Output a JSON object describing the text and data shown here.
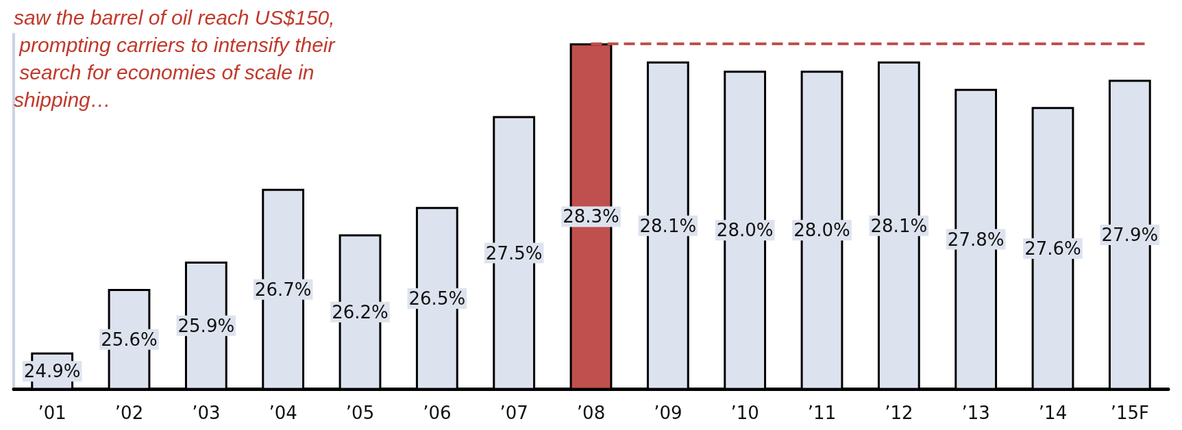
{
  "chart_data": {
    "type": "bar",
    "categories": [
      "’01",
      "’02",
      "’03",
      "’04",
      "’05",
      "’06",
      "’07",
      "’08",
      "’09",
      "’10",
      "’11",
      "’12",
      "’13",
      "’14",
      "’15F"
    ],
    "values": [
      24.9,
      25.6,
      25.9,
      26.7,
      26.2,
      26.5,
      27.5,
      28.3,
      28.1,
      28.0,
      28.0,
      28.1,
      27.8,
      27.6,
      27.9
    ],
    "colors": [
      "#dde3ee",
      "#dde3ee",
      "#dde3ee",
      "#dde3ee",
      "#dde3ee",
      "#dde3ee",
      "#dde3ee",
      "#c0504d",
      "#dde3ee",
      "#dde3ee",
      "#dde3ee",
      "#dde3ee",
      "#dde3ee",
      "#dde3ee",
      "#dde3ee"
    ],
    "value_labels": [
      "24.9%",
      "25.6%",
      "25.9%",
      "26.7%",
      "26.2%",
      "26.5%",
      "27.5%",
      "28.3%",
      "28.1%",
      "28.0%",
      "28.0%",
      "28.1%",
      "27.8%",
      "27.6%",
      "27.9%"
    ],
    "ylim": [
      24.5,
      28.4
    ],
    "tick_labels": "x",
    "grid": false,
    "ref_lines": [
      {
        "axis": "y",
        "value": 28.3,
        "color": "#c0504d",
        "line_style": "dashed"
      }
    ],
    "annotations": [
      "saw the barrel of oil reach US$150, prompting carriers to intensify their search for economies of scale in shipping…"
    ]
  }
}
